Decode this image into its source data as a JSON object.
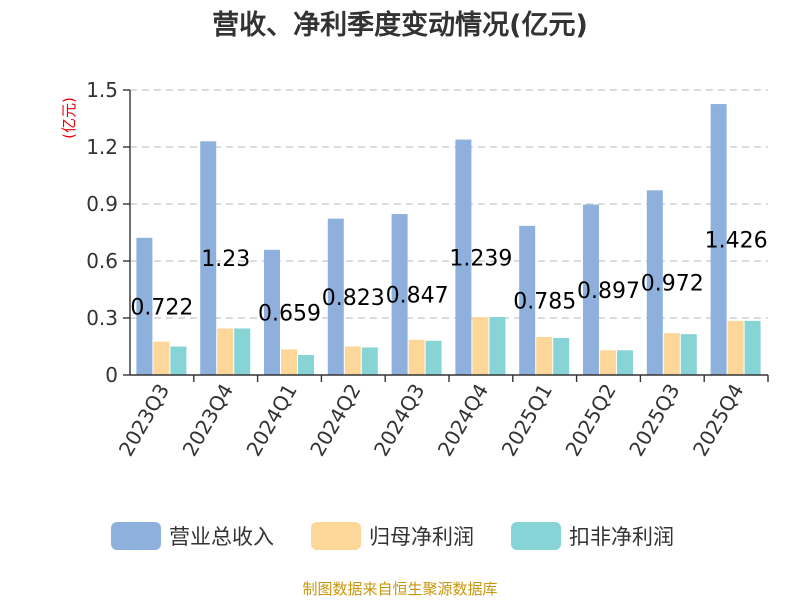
{
  "chart_data": {
    "type": "bar",
    "title": "营收、净利季度变动情况(亿元)",
    "ylabel": "(亿元)",
    "ylim": [
      0,
      1.5
    ],
    "yticks": [
      "0",
      "0.3",
      "0.6",
      "0.9",
      "1.2",
      "1.5"
    ],
    "grid": true,
    "legend_position": "bottom",
    "categories": [
      "2023Q3",
      "2023Q4",
      "2024Q1",
      "2024Q2",
      "2024Q3",
      "2024Q4",
      "2025Q1",
      "2025Q2",
      "2025Q3",
      "2025Q4"
    ],
    "series": [
      {
        "name": "营业总收入",
        "color": "#8eb0dc",
        "values": [
          0.722,
          1.23,
          0.659,
          0.823,
          0.847,
          1.239,
          0.785,
          0.897,
          0.972,
          1.426
        ],
        "data_labels": [
          "0.722",
          "1.23",
          "0.659",
          "0.823",
          "0.847",
          "1.239",
          "0.785",
          "0.897",
          "0.972",
          "1.426"
        ]
      },
      {
        "name": "归母净利润",
        "color": "#fdd79a",
        "values": [
          0.175,
          0.245,
          0.135,
          0.15,
          0.185,
          0.305,
          0.2,
          0.13,
          0.22,
          0.285
        ]
      },
      {
        "name": "扣非净利润",
        "color": "#86d4d6",
        "values": [
          0.15,
          0.245,
          0.105,
          0.145,
          0.18,
          0.305,
          0.195,
          0.13,
          0.215,
          0.285
        ]
      }
    ],
    "source": "制图数据来自恒生聚源数据库"
  }
}
